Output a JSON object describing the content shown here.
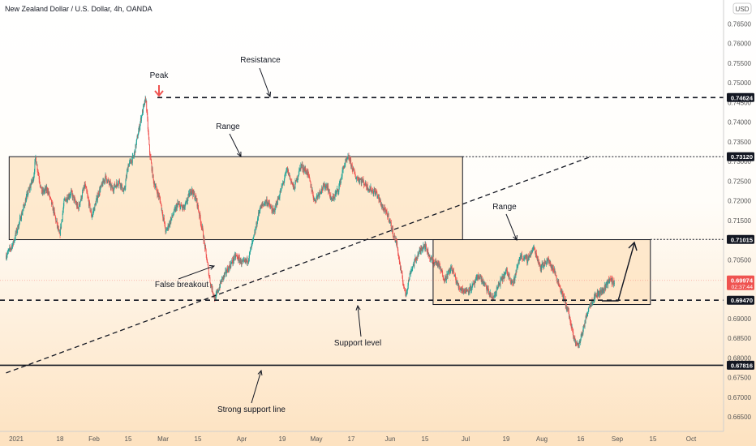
{
  "header": {
    "symbol": "New Zealand Dollar / U.S. Dollar, 4h, OANDA",
    "currency": "USD"
  },
  "colors": {
    "bull": "#26a69a",
    "bear": "#ef5350",
    "box_fill": "#fde3c0",
    "price_tag": "#ef5350",
    "peak_arrow": "#ef5350"
  },
  "chart_data": {
    "type": "candlestick",
    "yaxis": {
      "ticks": [
        "0.76500",
        "0.76000",
        "0.75500",
        "0.75000",
        "0.74500",
        "0.74000",
        "0.73500",
        "0.73000",
        "0.72500",
        "0.72000",
        "0.71500",
        "0.71000",
        "0.70500",
        "0.70000",
        "0.69500",
        "0.69000",
        "0.68500",
        "0.68000",
        "0.67500",
        "0.67000",
        "0.66500"
      ],
      "range": [
        0.6625,
        0.7715
      ]
    },
    "xaxis": {
      "ticks": [
        "2021",
        "18",
        "Feb",
        "15",
        "Mar",
        "15",
        "Apr",
        "19",
        "May",
        "17",
        "Jun",
        "15",
        "Jul",
        "19",
        "Aug",
        "16",
        "Sep",
        "15",
        "Oct"
      ]
    },
    "price_labels": [
      {
        "value": 0.74624,
        "text": "0.74624",
        "style": "dark"
      },
      {
        "value": 0.7312,
        "text": "0.73120",
        "style": "dark"
      },
      {
        "value": 0.71015,
        "text": "0.71015",
        "style": "dark"
      },
      {
        "value": 0.69974,
        "text": "0.69974",
        "sub": "02:37:44",
        "style": "red"
      },
      {
        "value": 0.6947,
        "text": "0.69470",
        "style": "dark"
      },
      {
        "value": 0.67816,
        "text": "0.67816",
        "style": "dark"
      }
    ],
    "levels": [
      {
        "name": "resistance",
        "value": 0.74624,
        "style": "dashed"
      },
      {
        "name": "range-top",
        "value": 0.7312,
        "style": "dotted"
      },
      {
        "name": "range2-top",
        "value": 0.71015,
        "style": "dotted"
      },
      {
        "name": "support",
        "value": 0.6947,
        "style": "dashed"
      },
      {
        "name": "strong-support",
        "value": 0.67816,
        "style": "solid"
      }
    ],
    "price_path": [
      [
        0.0,
        0.706
      ],
      [
        1.0,
        0.709
      ],
      [
        2.0,
        0.715
      ],
      [
        3.0,
        0.721
      ],
      [
        4.0,
        0.726
      ],
      [
        4.3,
        0.731
      ],
      [
        5.2,
        0.722
      ],
      [
        6.0,
        0.723
      ],
      [
        7.0,
        0.717
      ],
      [
        7.8,
        0.711
      ],
      [
        8.5,
        0.72
      ],
      [
        9.5,
        0.722
      ],
      [
        10.5,
        0.718
      ],
      [
        11.5,
        0.724
      ],
      [
        12.5,
        0.716
      ],
      [
        13.5,
        0.722
      ],
      [
        14.5,
        0.726
      ],
      [
        15.5,
        0.723
      ],
      [
        16.5,
        0.725
      ],
      [
        17.2,
        0.722
      ],
      [
        17.8,
        0.729
      ],
      [
        18.6,
        0.731
      ],
      [
        19.8,
        0.742
      ],
      [
        20.4,
        0.746
      ],
      [
        20.9,
        0.733
      ],
      [
        21.5,
        0.725
      ],
      [
        22.5,
        0.72
      ],
      [
        23.3,
        0.712
      ],
      [
        24.0,
        0.715
      ],
      [
        25.0,
        0.719
      ],
      [
        26.0,
        0.718
      ],
      [
        27.0,
        0.723
      ],
      [
        27.8,
        0.72
      ],
      [
        28.6,
        0.713
      ],
      [
        29.2,
        0.706
      ],
      [
        29.8,
        0.699
      ],
      [
        30.5,
        0.695
      ],
      [
        31.5,
        0.7
      ],
      [
        32.5,
        0.703
      ],
      [
        33.5,
        0.706
      ],
      [
        34.5,
        0.704
      ],
      [
        35.3,
        0.705
      ],
      [
        36.2,
        0.711
      ],
      [
        37.0,
        0.718
      ],
      [
        38.0,
        0.72
      ],
      [
        39.0,
        0.717
      ],
      [
        40.0,
        0.722
      ],
      [
        41.0,
        0.728
      ],
      [
        42.0,
        0.723
      ],
      [
        43.0,
        0.729
      ],
      [
        44.0,
        0.727
      ],
      [
        45.0,
        0.72
      ],
      [
        46.0,
        0.723
      ],
      [
        46.8,
        0.724
      ],
      [
        47.5,
        0.72
      ],
      [
        48.5,
        0.723
      ],
      [
        49.3,
        0.729
      ],
      [
        50.0,
        0.731
      ],
      [
        51.0,
        0.726
      ],
      [
        52.0,
        0.725
      ],
      [
        53.0,
        0.723
      ],
      [
        54.0,
        0.722
      ],
      [
        55.0,
        0.718
      ],
      [
        55.8,
        0.716
      ],
      [
        56.4,
        0.712
      ],
      [
        57.0,
        0.709
      ],
      [
        57.6,
        0.702
      ],
      [
        58.3,
        0.696
      ],
      [
        59.0,
        0.702
      ],
      [
        60.0,
        0.706
      ],
      [
        61.0,
        0.709
      ],
      [
        62.0,
        0.705
      ],
      [
        63.0,
        0.704
      ],
      [
        64.0,
        0.7
      ],
      [
        65.0,
        0.703
      ],
      [
        66.0,
        0.698
      ],
      [
        67.0,
        0.697
      ],
      [
        68.0,
        0.698
      ],
      [
        69.0,
        0.701
      ],
      [
        70.0,
        0.698
      ],
      [
        71.0,
        0.695
      ],
      [
        72.0,
        0.699
      ],
      [
        73.0,
        0.702
      ],
      [
        74.0,
        0.699
      ],
      [
        75.0,
        0.706
      ],
      [
        76.0,
        0.705
      ],
      [
        77.0,
        0.708
      ],
      [
        78.0,
        0.703
      ],
      [
        79.0,
        0.705
      ],
      [
        80.0,
        0.702
      ],
      [
        81.0,
        0.697
      ],
      [
        82.0,
        0.692
      ],
      [
        82.8,
        0.685
      ],
      [
        83.5,
        0.683
      ],
      [
        84.3,
        0.688
      ],
      [
        85.0,
        0.693
      ],
      [
        86.0,
        0.696
      ],
      [
        87.0,
        0.697
      ],
      [
        88.0,
        0.7
      ],
      [
        88.8,
        0.699
      ]
    ],
    "boxes": [
      {
        "name": "range-box-1",
        "t0": 0.45,
        "t1": 66.6,
        "p0": 0.7312,
        "p1": 0.7101
      },
      {
        "name": "range-box-2",
        "t0": 62.3,
        "t1": 94.0,
        "p0": 0.7101,
        "p1": 0.6936
      }
    ],
    "trendline": {
      "t0": 0.0,
      "p0": 0.6762,
      "t1": 85.3,
      "p1": 0.7312
    },
    "annotations": [
      {
        "name": "peak",
        "text": "Peak"
      },
      {
        "name": "resistance",
        "text": "Resistance"
      },
      {
        "name": "range-1",
        "text": "Range"
      },
      {
        "name": "range-2",
        "text": "Range"
      },
      {
        "name": "false-breakout",
        "text": "False breakout"
      },
      {
        "name": "support-level",
        "text": "Support level"
      },
      {
        "name": "strong-support-line",
        "text": "Strong support line"
      }
    ]
  }
}
